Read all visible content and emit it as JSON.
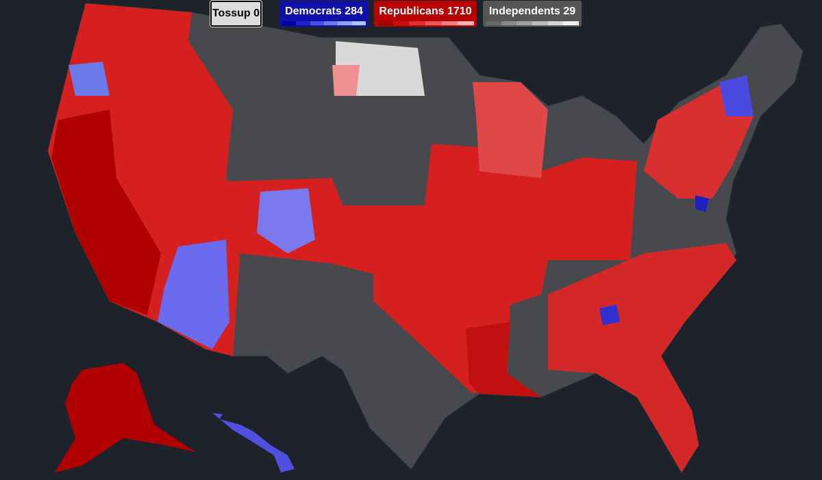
{
  "legend": [
    {
      "name": "Tossup",
      "count": 0
    },
    {
      "name": "Democrats",
      "count": 284
    },
    {
      "name": "Republicans",
      "count": 1710
    },
    {
      "name": "Independents",
      "count": 29
    }
  ]
}
